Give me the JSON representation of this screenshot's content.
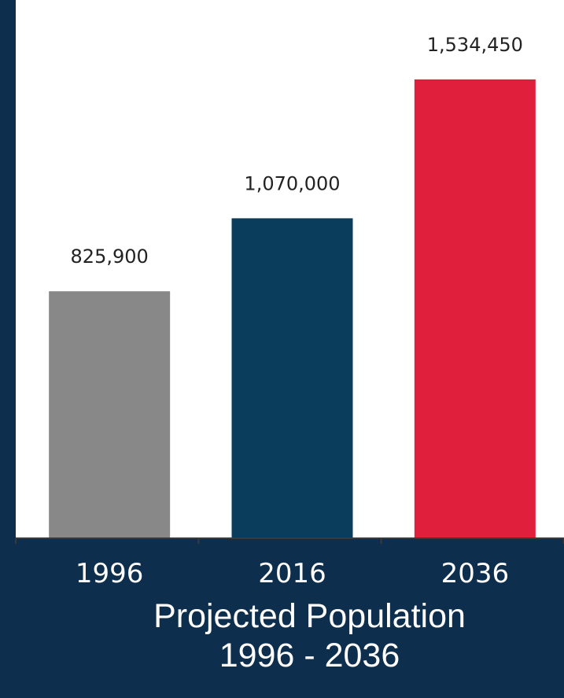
{
  "chart_data": {
    "type": "bar",
    "categories": [
      "1996",
      "2016",
      "2036"
    ],
    "values": [
      825900,
      1070000,
      1534450
    ],
    "value_labels": [
      "825,900",
      "1,070,000",
      "1,534,450"
    ],
    "colors": [
      "#888888",
      "#0a3d5c",
      "#e01f3d"
    ],
    "ylim": [
      0,
      1800000
    ],
    "grid": false,
    "title": "Projected Population",
    "subtitle": "1996 - 2036"
  }
}
